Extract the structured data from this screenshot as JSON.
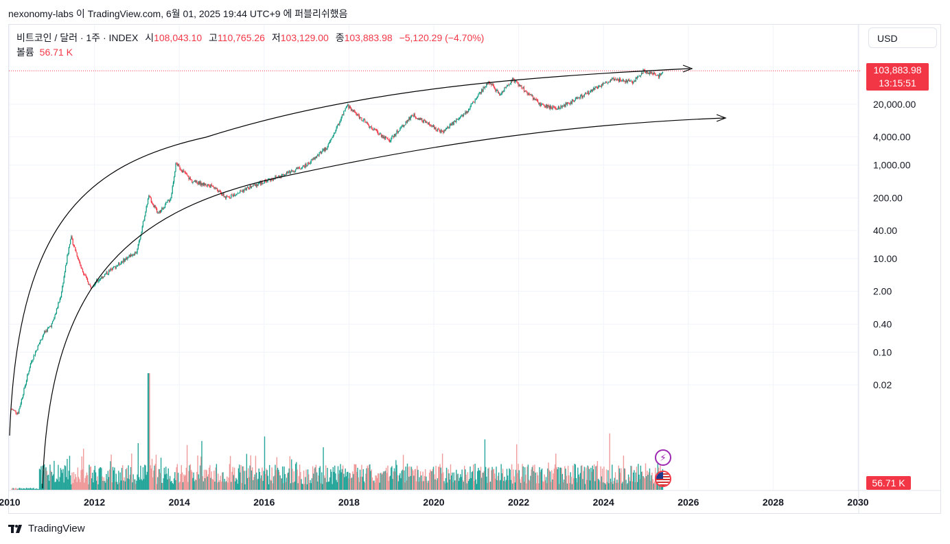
{
  "header": {
    "published_by": "nexonomy-labs 이 TradingView.com, 6월 01, 2025 19:44 UTC+9 에 퍼블리쉬했음"
  },
  "legend": {
    "symbol": "비트코인 / 달러 · 1주 · INDEX",
    "open_label": "시",
    "open": "108,043.10",
    "high_label": "고",
    "high": "110,765.26",
    "low_label": "저",
    "low": "103,129.00",
    "close_label": "종",
    "close": "103,883.98",
    "change": "−5,120.29 (−4.70%)",
    "volume_label": "볼륨",
    "volume": "56.71 K"
  },
  "currency_button": "USD",
  "price_tag": {
    "price": "103,883.98",
    "countdown": "13:15:51"
  },
  "volume_tag": "56.71 K",
  "branding": "TradingView",
  "colors": {
    "up": "#089981",
    "down": "#f23645",
    "up_volume": "#26a69a",
    "down_volume": "#ef9a9a",
    "grid": "#f0f3fa"
  },
  "chart_data": {
    "type": "candlestick",
    "title": "비트코인 / 달러 · 1주 · INDEX",
    "y_scale": "log",
    "y_ticks": [
      {
        "label": "20,000.00",
        "value": 20000
      },
      {
        "label": "4,000.00",
        "value": 4000
      },
      {
        "label": "1,000.00",
        "value": 1000
      },
      {
        "label": "200.00",
        "value": 200
      },
      {
        "label": "40.00",
        "value": 40
      },
      {
        "label": "10.00",
        "value": 10
      },
      {
        "label": "2.00",
        "value": 2
      },
      {
        "label": "0.40",
        "value": 0.4
      },
      {
        "label": "0.10",
        "value": 0.1
      },
      {
        "label": "0.02",
        "value": 0.02
      }
    ],
    "x_ticks": [
      "2010",
      "2012",
      "2014",
      "2016",
      "2018",
      "2020",
      "2022",
      "2024",
      "2026",
      "2028",
      "2030"
    ],
    "x_range": [
      2010,
      2030
    ],
    "price_path": [
      {
        "t": 2010.05,
        "p": 0.006
      },
      {
        "t": 2010.2,
        "p": 0.005
      },
      {
        "t": 2010.5,
        "p": 0.06
      },
      {
        "t": 2010.8,
        "p": 0.25
      },
      {
        "t": 2011.0,
        "p": 0.4
      },
      {
        "t": 2011.2,
        "p": 1.5
      },
      {
        "t": 2011.44,
        "p": 30
      },
      {
        "t": 2011.7,
        "p": 6
      },
      {
        "t": 2011.9,
        "p": 2.5
      },
      {
        "t": 2012.3,
        "p": 5
      },
      {
        "t": 2012.8,
        "p": 11
      },
      {
        "t": 2013.0,
        "p": 14
      },
      {
        "t": 2013.28,
        "p": 220
      },
      {
        "t": 2013.5,
        "p": 90
      },
      {
        "t": 2013.8,
        "p": 200
      },
      {
        "t": 2013.92,
        "p": 1100
      },
      {
        "t": 2014.3,
        "p": 450
      },
      {
        "t": 2014.8,
        "p": 350
      },
      {
        "t": 2015.1,
        "p": 200
      },
      {
        "t": 2015.8,
        "p": 380
      },
      {
        "t": 2016.5,
        "p": 650
      },
      {
        "t": 2017.0,
        "p": 1000
      },
      {
        "t": 2017.5,
        "p": 2500
      },
      {
        "t": 2017.96,
        "p": 19000
      },
      {
        "t": 2018.5,
        "p": 6500
      },
      {
        "t": 2018.95,
        "p": 3300
      },
      {
        "t": 2019.5,
        "p": 12000
      },
      {
        "t": 2020.2,
        "p": 5000
      },
      {
        "t": 2020.8,
        "p": 15000
      },
      {
        "t": 2021.3,
        "p": 63000
      },
      {
        "t": 2021.55,
        "p": 32000
      },
      {
        "t": 2021.86,
        "p": 68000
      },
      {
        "t": 2022.5,
        "p": 20000
      },
      {
        "t": 2022.9,
        "p": 16000
      },
      {
        "t": 2023.5,
        "p": 30000
      },
      {
        "t": 2024.2,
        "p": 70000
      },
      {
        "t": 2024.7,
        "p": 60000
      },
      {
        "t": 2024.95,
        "p": 105000
      },
      {
        "t": 2025.3,
        "p": 80000
      },
      {
        "t": 2025.4,
        "p": 103883.98
      }
    ],
    "last_price": 103883.98,
    "volume_last": "56.71 K",
    "annotations": [
      {
        "type": "upper_curve_with_arrow",
        "ends": 2026.0
      },
      {
        "type": "lower_curve_with_arrow",
        "ends": 2026.7
      }
    ]
  }
}
